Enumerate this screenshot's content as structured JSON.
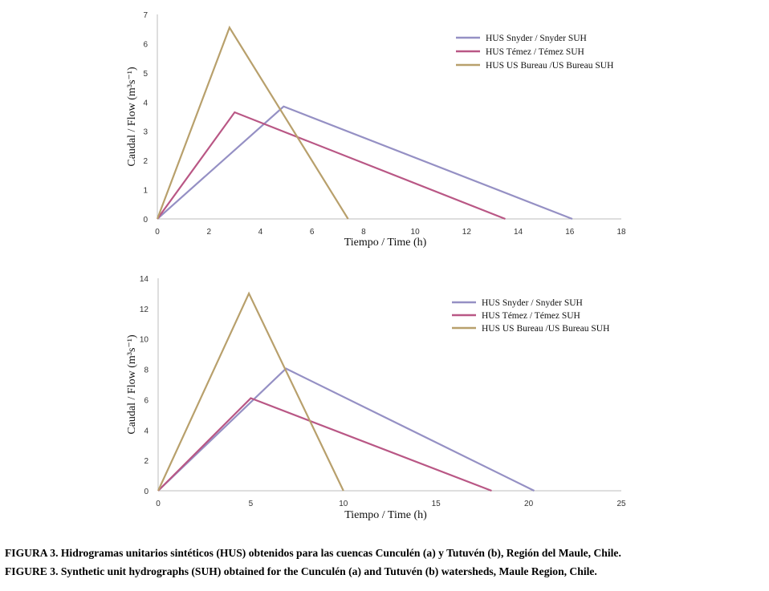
{
  "chart_data": [
    {
      "type": "line",
      "panel": "a",
      "xlabel": "Tiempo / Time (h)",
      "ylabel": "Caudal / Flow (m³s⁻¹)",
      "xlim": [
        0,
        18
      ],
      "ylim": [
        0,
        7
      ],
      "xticks": [
        0,
        2,
        4,
        6,
        8,
        10,
        12,
        14,
        16,
        18
      ],
      "yticks": [
        0,
        1,
        2,
        3,
        4,
        5,
        6,
        7
      ],
      "legend_position": "top-right",
      "series": [
        {
          "name": "HUS Snyder / Snyder SUH",
          "color": "#9590c4",
          "x": [
            0,
            4.9,
            16.1
          ],
          "y": [
            0,
            3.85,
            0
          ]
        },
        {
          "name": "HUS Témez / Témez SUH",
          "color": "#b95785",
          "x": [
            0,
            3.0,
            13.5
          ],
          "y": [
            0,
            3.65,
            0
          ]
        },
        {
          "name": "HUS US Bureau /US Bureau SUH",
          "color": "#b8a06c",
          "x": [
            0,
            2.8,
            7.4
          ],
          "y": [
            0,
            6.55,
            0
          ]
        }
      ]
    },
    {
      "type": "line",
      "panel": "b",
      "xlabel": "Tiempo / Time (h)",
      "ylabel": "Caudal / Flow (m³s⁻¹)",
      "xlim": [
        0,
        25
      ],
      "ylim": [
        0,
        14
      ],
      "xticks": [
        0,
        5,
        10,
        15,
        20,
        25
      ],
      "yticks": [
        0,
        2,
        4,
        6,
        8,
        10,
        12,
        14
      ],
      "legend_position": "top-right",
      "series": [
        {
          "name": "HUS Snyder / Snyder SUH",
          "color": "#9590c4",
          "x": [
            0,
            6.9,
            20.3
          ],
          "y": [
            0,
            8.05,
            0
          ]
        },
        {
          "name": "HUS Témez / Témez SUH",
          "color": "#b95785",
          "x": [
            0,
            5.0,
            18.0
          ],
          "y": [
            0,
            6.1,
            0
          ]
        },
        {
          "name": "HUS US Bureau /US Bureau SUH",
          "color": "#b8a06c",
          "x": [
            0,
            4.9,
            10.0
          ],
          "y": [
            0,
            13.0,
            0
          ]
        }
      ]
    }
  ],
  "caption": {
    "es": "FIGURA 3. Hidrogramas unitarios sintéticos (HUS) obtenidos para las cuencas Cunculén (a) y Tutuvén (b), Región del Maule, Chile.",
    "en": "FIGURE 3. Synthetic unit hydrographs (SUH) obtained for the Cunculén (a) and Tutuvén (b) watersheds, Maule Region, Chile."
  }
}
